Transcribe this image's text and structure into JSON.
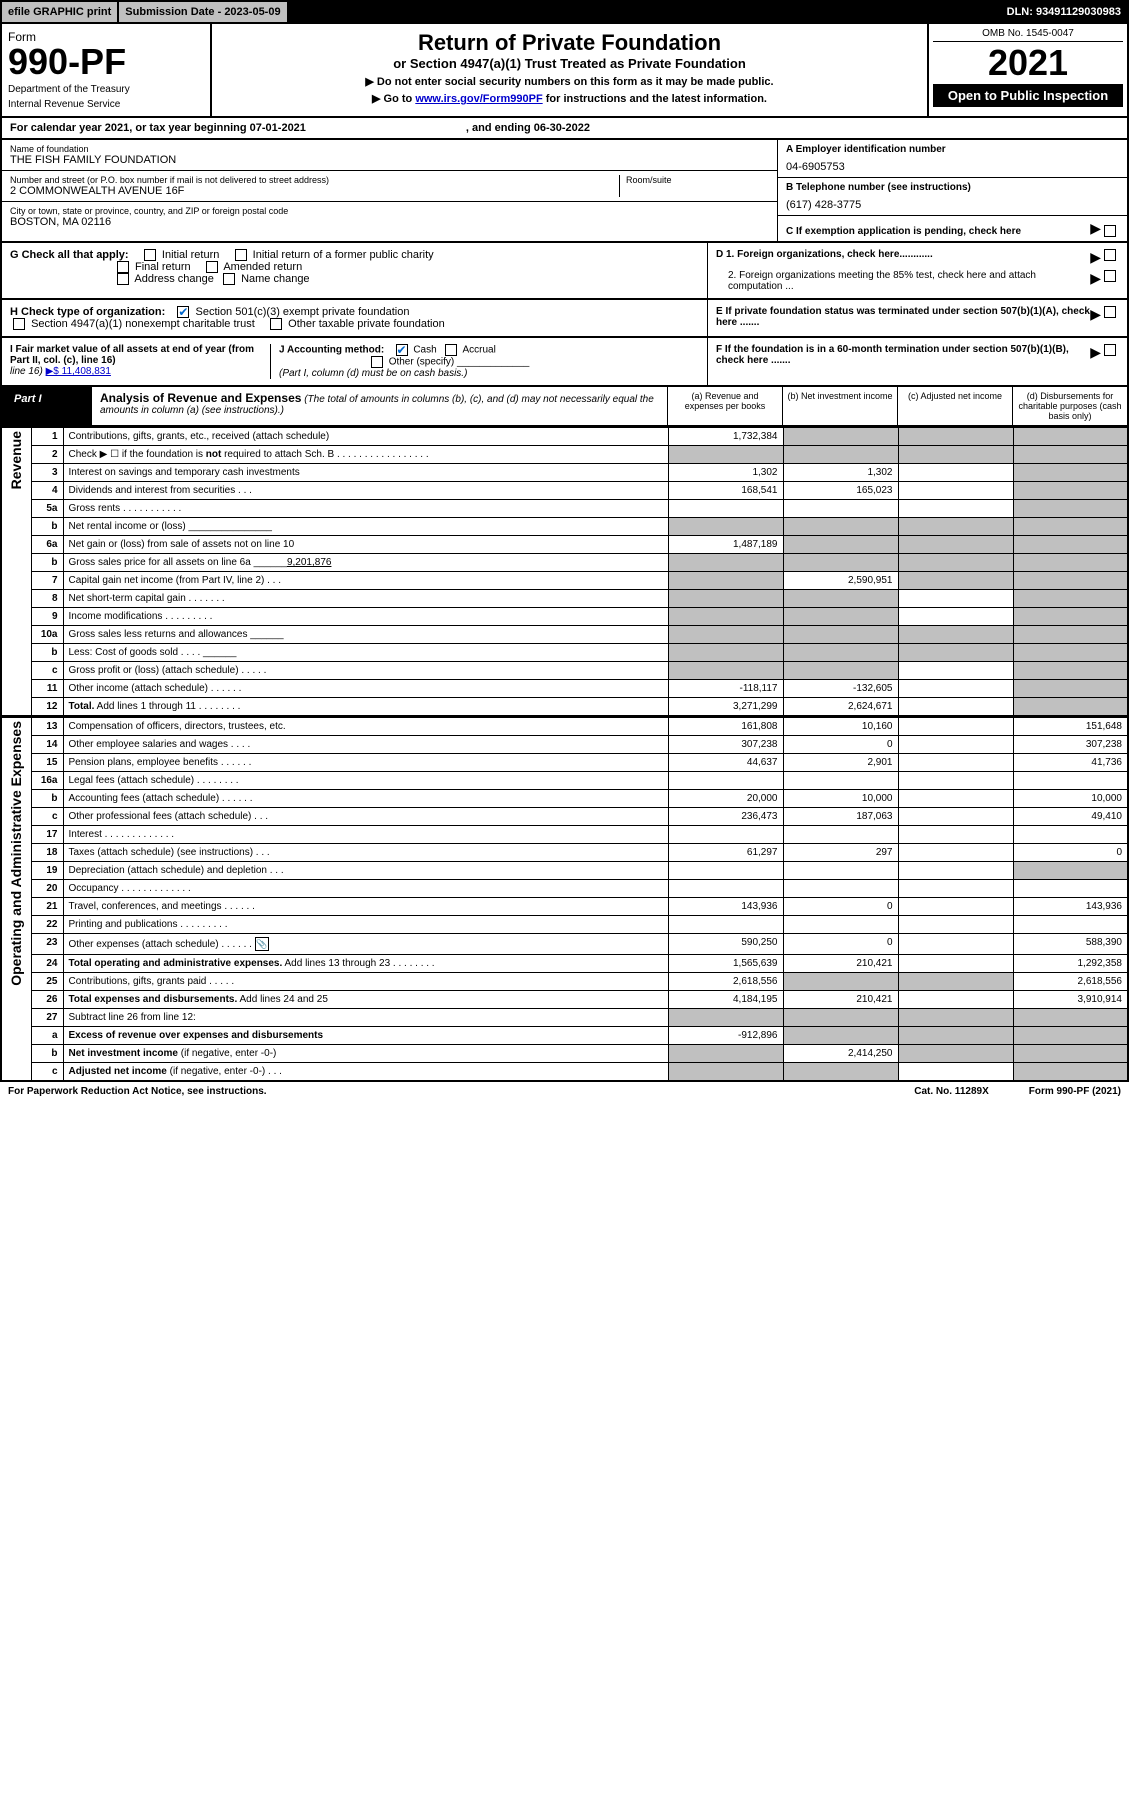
{
  "colors": {
    "accent": "#0066cc",
    "link": "#0000cc",
    "shade": "#c0c0c0",
    "black": "#000000",
    "white": "#ffffff"
  },
  "topbar": {
    "efile": "efile GRAPHIC print",
    "submission": "Submission Date - 2023-05-09",
    "dln": "DLN: 93491129030983"
  },
  "header": {
    "form_label": "Form",
    "form_no": "990-PF",
    "dept1": "Department of the Treasury",
    "dept2": "Internal Revenue Service",
    "title": "Return of Private Foundation",
    "subtitle": "or Section 4947(a)(1) Trust Treated as Private Foundation",
    "instr1": "▶ Do not enter social security numbers on this form as it may be made public.",
    "instr2_pre": "▶ Go to ",
    "instr2_link": "www.irs.gov/Form990PF",
    "instr2_post": " for instructions and the latest information.",
    "omb": "OMB No. 1545-0047",
    "year": "2021",
    "open": "Open to Public Inspection"
  },
  "cal": {
    "text": "For calendar year 2021, or tax year beginning 07-01-2021",
    "ending": ", and ending 06-30-2022"
  },
  "info": {
    "name_lbl": "Name of foundation",
    "name": "THE FISH FAMILY FOUNDATION",
    "addr_lbl": "Number and street (or P.O. box number if mail is not delivered to street address)",
    "addr": "2 COMMONWEALTH AVENUE 16F",
    "room_lbl": "Room/suite",
    "city_lbl": "City or town, state or province, country, and ZIP or foreign postal code",
    "city": "BOSTON, MA  02116",
    "a_lbl": "A Employer identification number",
    "a_val": "04-6905753",
    "b_lbl": "B Telephone number (see instructions)",
    "b_val": "(617) 428-3775",
    "c_lbl": "C If exemption application is pending, check here"
  },
  "chk": {
    "g_lbl": "G Check all that apply:",
    "g1": "Initial return",
    "g2": "Initial return of a former public charity",
    "g3": "Final return",
    "g4": "Amended return",
    "g5": "Address change",
    "g6": "Name change",
    "h_lbl": "H Check type of organization:",
    "h1": "Section 501(c)(3) exempt private foundation",
    "h2": "Section 4947(a)(1) nonexempt charitable trust",
    "h3": "Other taxable private foundation",
    "i_lbl": "I Fair market value of all assets at end of year (from Part II, col. (c), line 16)",
    "i_val": "▶$  11,408,831",
    "j_lbl": "J Accounting method:",
    "j1": "Cash",
    "j2": "Accrual",
    "j3": "Other (specify)",
    "j_note": "(Part I, column (d) must be on cash basis.)",
    "d1": "D 1. Foreign organizations, check here............",
    "d2": "2. Foreign organizations meeting the 85% test, check here and attach computation ...",
    "e": "E  If private foundation status was terminated under section 507(b)(1)(A), check here .......",
    "f": "F  If the foundation is in a 60-month termination under section 507(b)(1)(B), check here .......",
    "arrow": "▶"
  },
  "part": {
    "label": "Part I",
    "title": "Analysis of Revenue and Expenses",
    "title_note": " (The total of amounts in columns (b), (c), and (d) may not necessarily equal the amounts in column (a) (see instructions).)",
    "col_a": "(a)   Revenue and expenses per books",
    "col_b": "(b)  Net investment income",
    "col_c": "(c)  Adjusted net income",
    "col_d": "(d)  Disbursements for charitable purposes (cash basis only)"
  },
  "rot": {
    "rev": "Revenue",
    "exp": "Operating and Administrative Expenses"
  },
  "rows": [
    {
      "n": "1",
      "d": "Contributions, gifts, grants, etc., received (attach schedule)",
      "a": "1,732,384",
      "bs": true,
      "cs": true,
      "ds": true
    },
    {
      "n": "2",
      "d": "Check ▶ ☐ if the foundation is <b>not</b> required to attach Sch. B  .  .  .  .  .  .  .  .  .  .  .  .  .  .  .  .  .",
      "as": true,
      "bs": true,
      "cs": true,
      "ds": true
    },
    {
      "n": "3",
      "d": "Interest on savings and temporary cash investments",
      "a": "1,302",
      "b": "1,302",
      "ds": true
    },
    {
      "n": "4",
      "d": "Dividends and interest from securities   .   .   .",
      "a": "168,541",
      "b": "165,023",
      "ds": true
    },
    {
      "n": "5a",
      "d": "Gross rents    .   .   .   .   .   .   .   .   .   .   .",
      "ds": true
    },
    {
      "n": "b",
      "d": "Net rental income or (loss)  _______________",
      "as": true,
      "bs": true,
      "cs": true,
      "ds": true
    },
    {
      "n": "6a",
      "d": "Net gain or (loss) from sale of assets not on line 10",
      "a": "1,487,189",
      "bs": true,
      "cs": true,
      "ds": true
    },
    {
      "n": "b",
      "d": "Gross sales price for all assets on line 6a ______<u>9,201,876</u>",
      "as": true,
      "bs": true,
      "cs": true,
      "ds": true
    },
    {
      "n": "7",
      "d": "Capital gain net income (from Part IV, line 2)   .   .   .",
      "as": true,
      "b": "2,590,951",
      "cs": true,
      "ds": true
    },
    {
      "n": "8",
      "d": "Net short-term capital gain  .   .   .   .   .   .   .",
      "as": true,
      "bs": true,
      "ds": true
    },
    {
      "n": "9",
      "d": "Income modifications .   .   .   .   .   .   .   .   .",
      "as": true,
      "bs": true,
      "ds": true
    },
    {
      "n": "10a",
      "d": "Gross sales less returns and allowances  ______",
      "as": true,
      "bs": true,
      "cs": true,
      "ds": true
    },
    {
      "n": "b",
      "d": "Less: Cost of goods sold   .   .   .   .   ______",
      "as": true,
      "bs": true,
      "cs": true,
      "ds": true
    },
    {
      "n": "c",
      "d": "Gross profit or (loss) (attach schedule)   .   .   .   .   .",
      "as": true,
      "bs": true,
      "ds": true
    },
    {
      "n": "11",
      "d": "Other income (attach schedule)   .   .   .   .   .   .",
      "a": "-118,117",
      "b": "-132,605",
      "ds": true
    },
    {
      "n": "12",
      "d": "<b>Total.</b> Add lines 1 through 11   .   .   .   .   .   .   .   .",
      "a": "3,271,299",
      "b": "2,624,671",
      "ds": true
    }
  ],
  "exp_rows": [
    {
      "n": "13",
      "d": "Compensation of officers, directors, trustees, etc.",
      "a": "161,808",
      "b": "10,160",
      "dd": "151,648"
    },
    {
      "n": "14",
      "d": "Other employee salaries and wages   .   .   .   .",
      "a": "307,238",
      "b": "0",
      "dd": "307,238"
    },
    {
      "n": "15",
      "d": "Pension plans, employee benefits .   .   .   .   .   .",
      "a": "44,637",
      "b": "2,901",
      "dd": "41,736"
    },
    {
      "n": "16a",
      "d": "Legal fees (attach schedule) .   .   .   .   .   .   .   ."
    },
    {
      "n": "b",
      "d": "Accounting fees (attach schedule) .   .   .   .   .   .",
      "a": "20,000",
      "b": "10,000",
      "dd": "10,000"
    },
    {
      "n": "c",
      "d": "Other professional fees (attach schedule)   .   .   .",
      "a": "236,473",
      "b": "187,063",
      "dd": "49,410"
    },
    {
      "n": "17",
      "d": "Interest .   .   .   .   .   .   .   .   .   .   .   .   ."
    },
    {
      "n": "18",
      "d": "Taxes (attach schedule) (see instructions)   .   .   .",
      "a": "61,297",
      "b": "297",
      "dd": "0"
    },
    {
      "n": "19",
      "d": "Depreciation (attach schedule) and depletion   .   .   .",
      "ds": true
    },
    {
      "n": "20",
      "d": "Occupancy .   .   .   .   .   .   .   .   .   .   .   .   ."
    },
    {
      "n": "21",
      "d": "Travel, conferences, and meetings .   .   .   .   .   .",
      "a": "143,936",
      "b": "0",
      "dd": "143,936"
    },
    {
      "n": "22",
      "d": "Printing and publications .   .   .   .   .   .   .   .   ."
    },
    {
      "n": "23",
      "d": "Other expenses (attach schedule) .   .   .   .   .   .",
      "icon": true,
      "a": "590,250",
      "b": "0",
      "dd": "588,390"
    },
    {
      "n": "24",
      "d": "<b>Total operating and administrative expenses.</b> Add lines 13 through 23   .   .   .   .   .   .   .   .",
      "a": "1,565,639",
      "b": "210,421",
      "dd": "1,292,358"
    },
    {
      "n": "25",
      "d": "Contributions, gifts, grants paid   .   .   .   .   .",
      "a": "2,618,556",
      "bs": true,
      "cs": true,
      "dd": "2,618,556"
    },
    {
      "n": "26",
      "d": "<b>Total expenses and disbursements.</b> Add lines 24 and 25",
      "a": "4,184,195",
      "b": "210,421",
      "dd": "3,910,914"
    },
    {
      "n": "27",
      "d": "Subtract line 26 from line 12:",
      "as": true,
      "bs": true,
      "cs": true,
      "ds": true
    },
    {
      "n": "a",
      "d": "<b>Excess of revenue over expenses and disbursements</b>",
      "a": "-912,896",
      "bs": true,
      "cs": true,
      "ds": true
    },
    {
      "n": "b",
      "d": "<b>Net investment income</b> (if negative, enter -0-)",
      "as": true,
      "b": "2,414,250",
      "cs": true,
      "ds": true
    },
    {
      "n": "c",
      "d": "<b>Adjusted net income</b> (if negative, enter -0-)   .   .   .",
      "as": true,
      "bs": true,
      "ds": true
    }
  ],
  "footer": {
    "left": "For Paperwork Reduction Act Notice, see instructions.",
    "mid": "Cat. No. 11289X",
    "right": "Form 990-PF (2021)"
  }
}
